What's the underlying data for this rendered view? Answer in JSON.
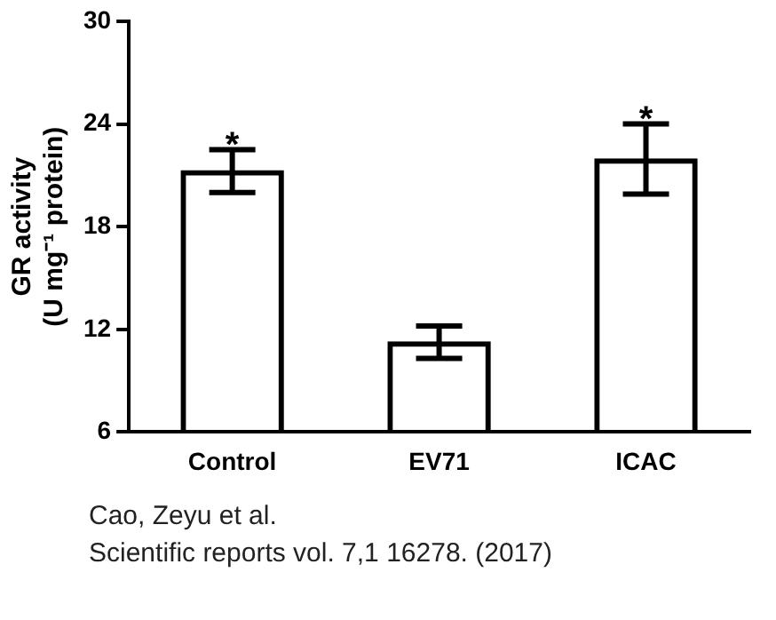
{
  "chart_data": {
    "type": "bar",
    "ylabel": "GR activity\n(U mg⁻¹ protein)",
    "categories": [
      "Control",
      "EV71",
      "ICAC"
    ],
    "values": [
      21.3,
      11.3,
      22.0
    ],
    "errors": [
      [
        20.0,
        22.5
      ],
      [
        10.3,
        12.2
      ],
      [
        19.9,
        24.0
      ]
    ],
    "color": "#000000",
    "ylim": [
      6,
      30
    ],
    "yticks": [
      6,
      12,
      18,
      24,
      30
    ],
    "grid": false,
    "legend": false,
    "annotations": [
      {
        "text": "*",
        "x": "Control",
        "y": 22.5
      },
      {
        "text": "*",
        "x": "ICAC",
        "y": 24.0
      },
      "Cao, Zeyu et al.\nScientific reports vol. 7,1 16278. (2017)"
    ]
  }
}
